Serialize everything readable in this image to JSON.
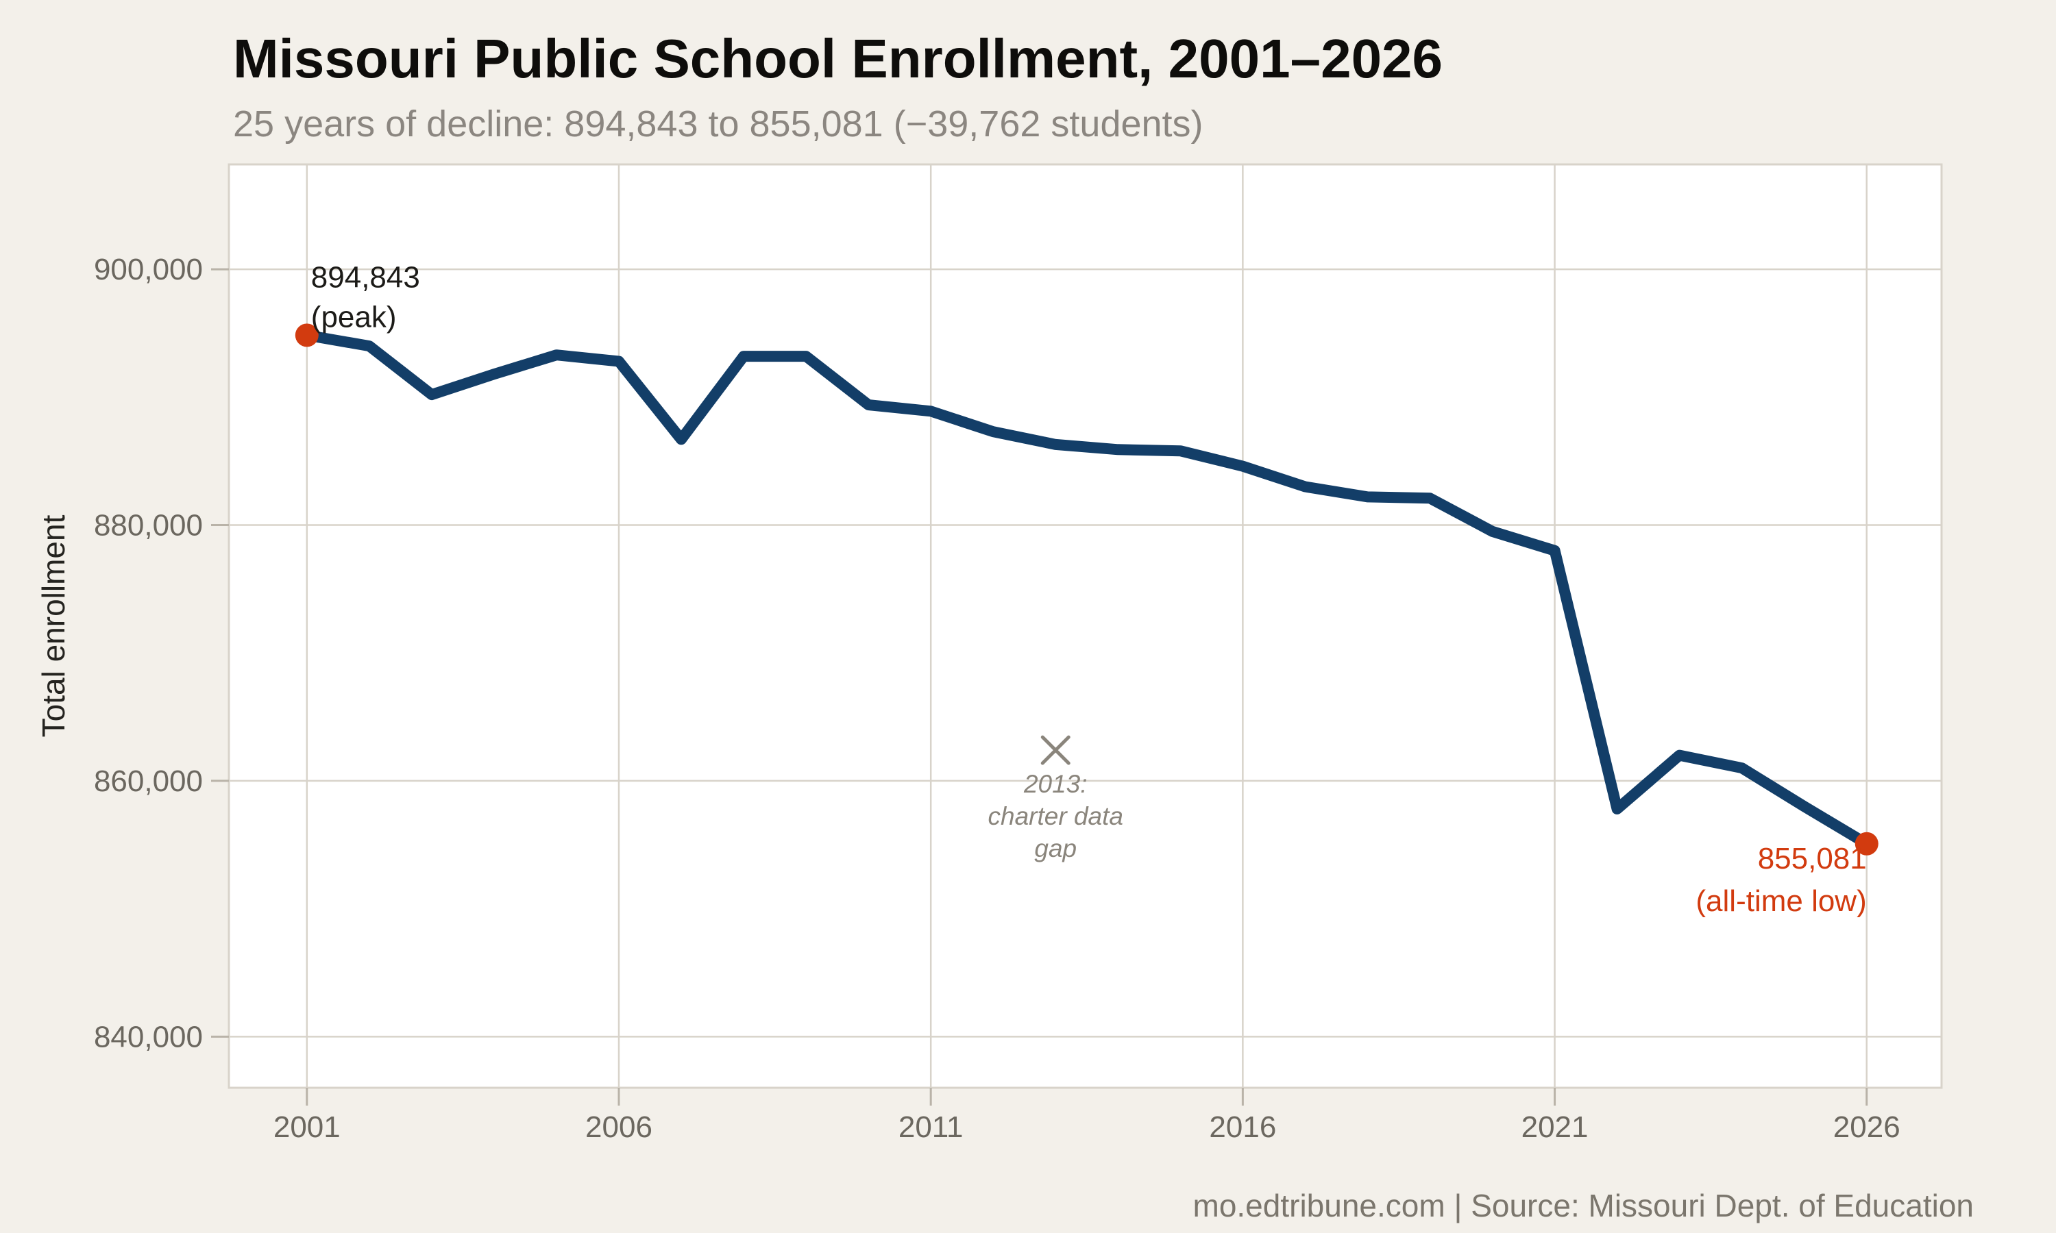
{
  "page": {
    "background": "#f3f0ea"
  },
  "header": {
    "title": "Missouri Public School Enrollment, 2001–2026",
    "subtitle": "25 years of decline: 894,843 to 855,081 (−39,762 students)"
  },
  "footer": {
    "text": "mo.edtribune.com | Source: Missouri Dept. of Education"
  },
  "chart_data": {
    "type": "line",
    "title": "Missouri Public School Enrollment, 2001–2026",
    "subtitle": "25 years of decline: 894,843 to 855,081 (−39,762 students)",
    "xlabel": "",
    "ylabel": "Total enrollment",
    "x": [
      2001,
      2002,
      2003,
      2004,
      2005,
      2006,
      2007,
      2008,
      2009,
      2010,
      2011,
      2012,
      2013,
      2014,
      2015,
      2016,
      2017,
      2018,
      2019,
      2020,
      2021,
      2022,
      2023,
      2024,
      2025,
      2026
    ],
    "values": [
      894843,
      894000,
      890200,
      891800,
      893300,
      892800,
      886700,
      893200,
      893200,
      889400,
      888900,
      887300,
      886300,
      885900,
      885800,
      884600,
      883000,
      882200,
      882100,
      879500,
      878000,
      857800,
      862000,
      861000,
      858000,
      855081
    ],
    "x_domain": [
      1999.75,
      2027.2
    ],
    "y_domain": [
      836000,
      908200
    ],
    "grid": true,
    "legend": "none",
    "x_ticks": [
      {
        "v": 2001,
        "label": "2001"
      },
      {
        "v": 2006,
        "label": "2006"
      },
      {
        "v": 2011,
        "label": "2011"
      },
      {
        "v": 2016,
        "label": "2016"
      },
      {
        "v": 2021,
        "label": "2021"
      },
      {
        "v": 2026,
        "label": "2026"
      }
    ],
    "y_ticks": [
      {
        "v": 900000,
        "label": "900,000"
      },
      {
        "v": 880000,
        "label": "880,000"
      },
      {
        "v": 860000,
        "label": "860,000"
      },
      {
        "v": 840000,
        "label": "840,000"
      }
    ],
    "colors": {
      "line": "#133e68",
      "marker": "#d23b0f",
      "grid": "#d8d3ca",
      "panel": "#ffffff",
      "tick": "#b9b3a8",
      "tick_label": "#6b675f",
      "annotation_gray": "#8a857c",
      "peak_label": "#1c1b18"
    },
    "markers": [
      {
        "year": 2001,
        "value": 894843,
        "lines": [
          "894,843",
          "(peak)"
        ],
        "label_color": "#1c1b18",
        "label_anchor": "start",
        "label_position": "above",
        "name": "peak-marker"
      },
      {
        "year": 2026,
        "value": 855081,
        "lines": [
          "855,081",
          "(all-time low)"
        ],
        "label_color": "#d23b0f",
        "label_anchor": "end",
        "label_position": "below",
        "name": "all-time-low-marker"
      }
    ],
    "gap_annotation": {
      "year": 2013,
      "value": 862400,
      "lines": [
        "2013:",
        "charter data",
        "gap"
      ]
    }
  }
}
